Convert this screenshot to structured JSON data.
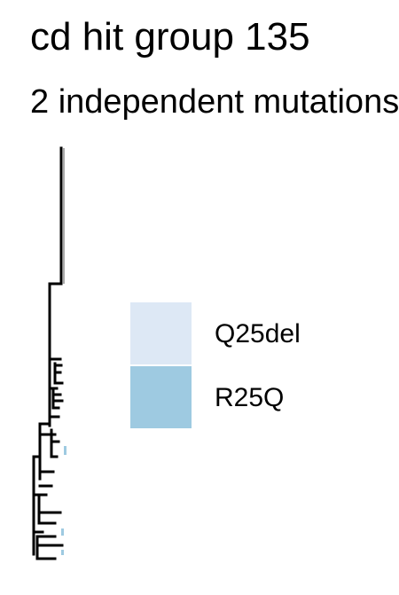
{
  "title": "cd hit group 135",
  "subtitle": "2 independent mutations",
  "legend": {
    "items": [
      {
        "label": "Q25del",
        "color": "#dde8f5"
      },
      {
        "label": "R25Q",
        "color": "#9ecae1"
      }
    ]
  },
  "colors": {
    "tree_line": "#000000",
    "leaf_line": "#555555"
  }
}
